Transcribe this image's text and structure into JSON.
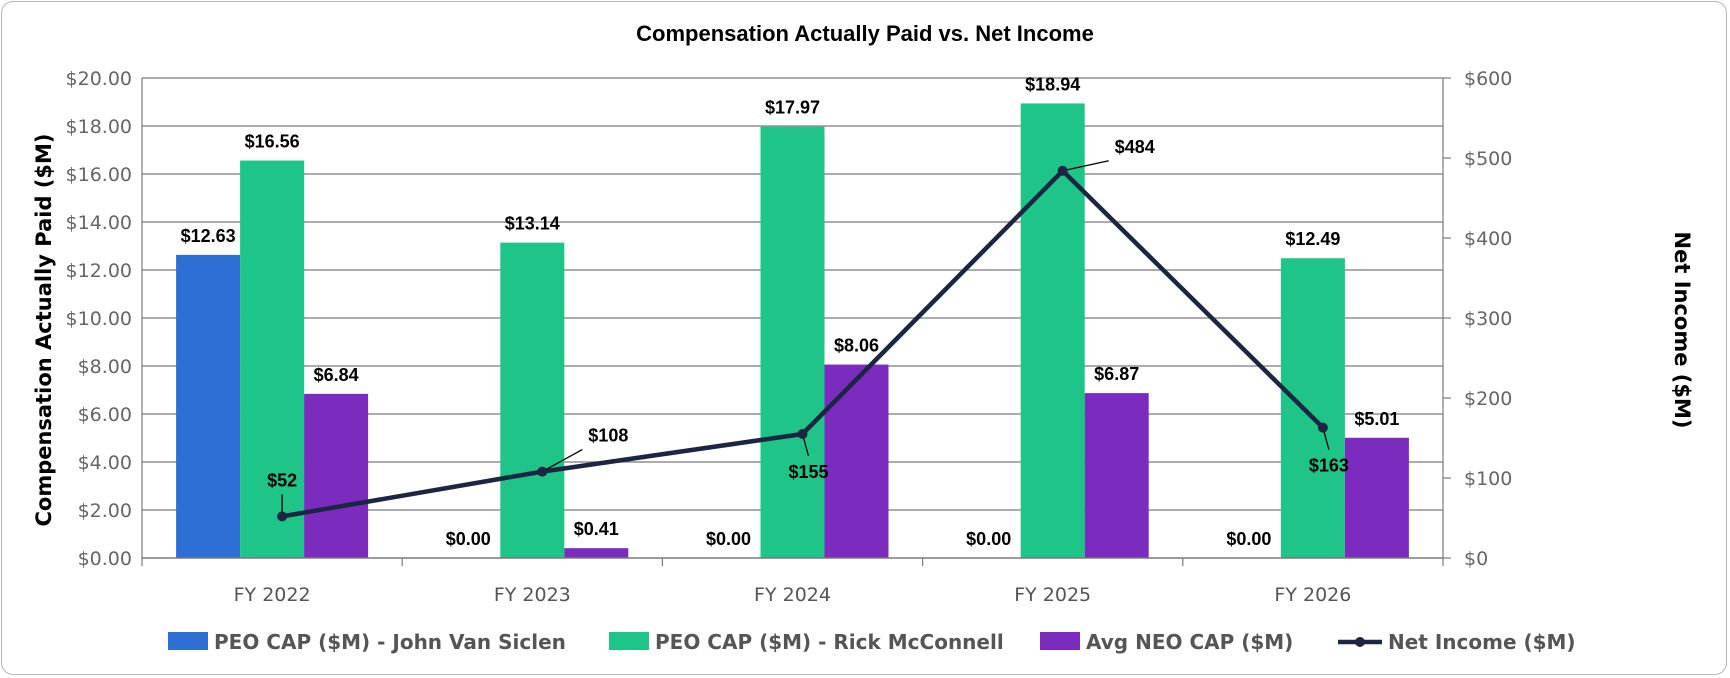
{
  "chart_data": {
    "type": "bar",
    "title": "Compensation Actually Paid vs. Net Income",
    "categories": [
      "FY 2022",
      "FY 2023",
      "FY 2024",
      "FY 2025",
      "FY 2026"
    ],
    "ylabel": "Compensation Actually Paid ($M)",
    "y2label": "Net Income ($M)",
    "ylim": [
      0,
      20
    ],
    "y2lim": [
      0,
      600
    ],
    "yticks": [
      "$0.00",
      "$2.00",
      "$4.00",
      "$6.00",
      "$8.00",
      "$10.00",
      "$12.00",
      "$14.00",
      "$16.00",
      "$18.00",
      "$20.00"
    ],
    "y2ticks": [
      "$0",
      "$100",
      "$200",
      "$300",
      "$400",
      "$500",
      "$600"
    ],
    "grid": true,
    "legend_position": "bottom",
    "series": [
      {
        "name": "PEO CAP ($M) - John Van Siclen",
        "type": "bar",
        "axis": "left",
        "color": "#2e6fd6",
        "values": [
          12.63,
          0,
          0,
          0,
          0
        ],
        "labels": [
          "$12.63",
          "$0.00",
          "$0.00",
          "$0.00",
          "$0.00"
        ]
      },
      {
        "name": "PEO CAP ($M) - Rick McConnell",
        "type": "bar",
        "axis": "left",
        "color": "#1fc488",
        "values": [
          16.56,
          13.14,
          17.97,
          18.94,
          12.49
        ],
        "labels": [
          "$16.56",
          "$13.14",
          "$17.97",
          "$18.94",
          "$12.49"
        ]
      },
      {
        "name": "Avg NEO CAP ($M)",
        "type": "bar",
        "axis": "left",
        "color": "#7b2cbf",
        "values": [
          6.84,
          0.41,
          8.06,
          6.87,
          5.01
        ],
        "labels": [
          "$6.84",
          "$0.41",
          "$8.06",
          "$6.87",
          "$5.01"
        ]
      },
      {
        "name": "Net Income ($M)",
        "type": "line",
        "axis": "right",
        "color": "#1c2541",
        "values": [
          52,
          108,
          155,
          484,
          163
        ],
        "labels": [
          "$52",
          "$108",
          "$155",
          "$484",
          "$163"
        ]
      }
    ]
  }
}
